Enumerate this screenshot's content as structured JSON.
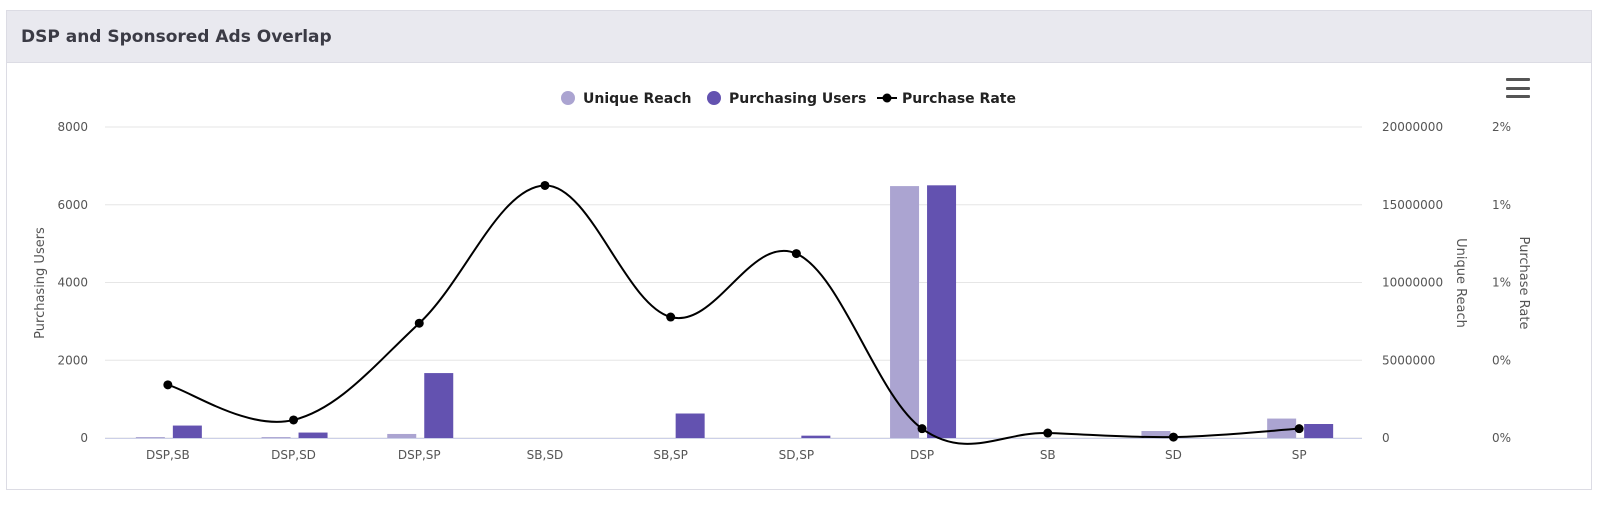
{
  "card": {
    "title": "DSP and Sponsored Ads Overlap"
  },
  "menu": {
    "icon": "hamburger-menu-icon"
  },
  "colors": {
    "unique_reach": "#aba4d1",
    "purchasing_users": "#6352b0",
    "purchase_rate": "#000000",
    "grid": "#e6e6e6"
  },
  "chart_data": {
    "type": "bar",
    "categories": [
      "DSP,SB",
      "DSP,SD",
      "DSP,SP",
      "SB,SD",
      "SB,SP",
      "SD,SP",
      "DSP",
      "SB",
      "SD",
      "SP"
    ],
    "series": [
      {
        "name": "Unique Reach",
        "type": "bar",
        "axis": "right1",
        "values": [
          60000,
          60000,
          260000,
          0,
          0,
          0,
          16200000,
          0,
          450000,
          1250000
        ]
      },
      {
        "name": "Purchasing Users",
        "type": "bar",
        "axis": "left",
        "values": [
          320,
          140,
          1670,
          0,
          630,
          60,
          6500,
          0,
          0,
          360
        ]
      },
      {
        "name": "Purchase Rate",
        "type": "line",
        "axis": "right2",
        "values": [
          0.4275,
          0.145,
          0.9225,
          2.03,
          0.9725,
          1.4825,
          0.075,
          0.04,
          0.0075,
          0.075
        ]
      }
    ],
    "left_axis": {
      "title": "Purchasing Users",
      "range": [
        0,
        8000
      ],
      "ticks": [
        "0",
        "2000",
        "4000",
        "6000",
        "8000"
      ]
    },
    "right_axis_1": {
      "title": "Unique Reach",
      "range": [
        0,
        20000000
      ],
      "ticks": [
        "0",
        "5000000",
        "10000000",
        "15000000",
        "20000000"
      ]
    },
    "right_axis_2": {
      "title": "Purchase Rate",
      "range": [
        0,
        2.5
      ],
      "ticks": [
        "0%",
        "0%",
        "1%",
        "1%",
        "2%"
      ]
    },
    "legend": {
      "position": "top-center",
      "items": [
        "Unique Reach",
        "Purchasing Users",
        "Purchase Rate"
      ]
    },
    "grid": true
  }
}
